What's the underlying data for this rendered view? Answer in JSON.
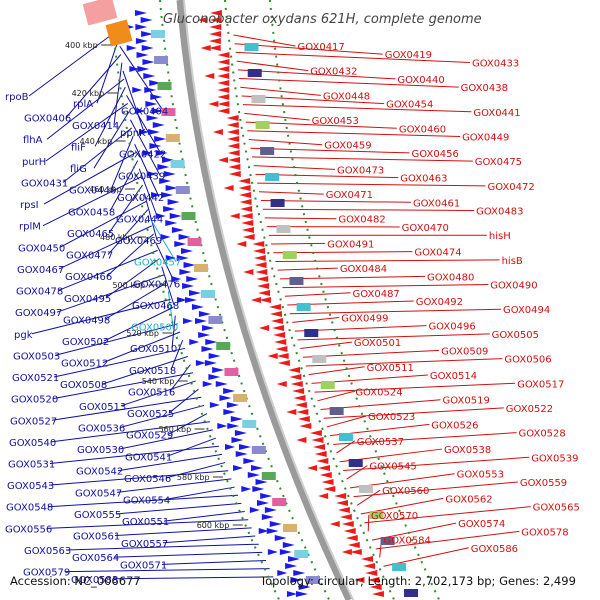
{
  "title": "Gluconobacter oxydans 621H, complete genome",
  "footer": {
    "accession": "Accession: NC_006677",
    "stats": "Topology: circular; Length: 2,702,173 bp; Genes: 2,499"
  },
  "kbp_ticks": [
    "400 kbp",
    "420 kbp",
    "440 kbp",
    "460 kbp",
    "480 kbp",
    "500 kbp",
    "520 kbp",
    "540 kbp",
    "560 kbp",
    "580 kbp",
    "600 kbp"
  ],
  "left_labels": [
    "rpoB",
    "rplA",
    "GOX0404",
    "GOX0406",
    "GOX0414",
    "ppnK",
    "flhA",
    "fliF",
    "GOX0422",
    "purH",
    "fliG",
    "GOX0439",
    "GOX0431",
    "GOX0446",
    "GOX0442",
    "rpsI",
    "GOX0458",
    "GOX0444",
    "rplM",
    "GOX0465",
    "GOX0469",
    "GOX0450",
    "GOX0477",
    "GOX0457",
    "GOX0467",
    "GOX0466",
    "GOX0476",
    "GOX0478",
    "GOX0495",
    "GOX0468",
    "GOX0497",
    "GOX0498",
    "GOX0500",
    "pgk",
    "GOX0502",
    "GOX0510",
    "GOX0503",
    "GOX0512",
    "GOX0518",
    "GOX0521",
    "GOX0508",
    "GOX0516",
    "GOX0520",
    "GOX0513",
    "GOX0525",
    "GOX0527",
    "GOX0536",
    "GOX0529",
    "GOX0540",
    "GOX0530",
    "GOX0541",
    "GOX0531",
    "GOX0542",
    "GOX0546",
    "GOX0543",
    "GOX0547",
    "GOX0554",
    "GOX0548",
    "GOX0555",
    "GOX0551",
    "GOX0556",
    "GOX0561",
    "GOX0557",
    "GOX0563",
    "GOX0564",
    "GOX0571",
    "GOX0579",
    "GOX0583"
  ],
  "right_labels": [
    "GOX0417",
    "GOX0419",
    "GOX0433",
    "GOX0432",
    "GOX0440",
    "GOX0438",
    "GOX0448",
    "GOX0454",
    "GOX0441",
    "GOX0453",
    "GOX0460",
    "GOX0449",
    "GOX0459",
    "GOX0456",
    "GOX0475",
    "GOX0473",
    "GOX0463",
    "GOX0472",
    "GOX0471",
    "GOX0461",
    "GOX0483",
    "GOX0482",
    "GOX0470",
    "hisH",
    "GOX0491",
    "GOX0474",
    "hisB",
    "GOX0484",
    "GOX0480",
    "GOX0490",
    "GOX0487",
    "GOX0492",
    "GOX0494",
    "GOX0499",
    "GOX0496",
    "GOX0505",
    "GOX0501",
    "GOX0509",
    "GOX0506",
    "GOX0511",
    "GOX0514",
    "GOX0517",
    "GOX0524",
    "GOX0519",
    "GOX0522",
    "GOX0523",
    "GOX0526",
    "GOX0528",
    "GOX0537",
    "GOX0538",
    "GOX0539",
    "GOX0545",
    "GOX0553",
    "GOX0559",
    "GOX0560",
    "GOX0562",
    "GOX0565",
    "GOX0570",
    "GOX0574",
    "GOX0578",
    "GOX0584",
    "GOX0586"
  ],
  "colors": {
    "left_label": "#1010a0",
    "right_label": "#d01010",
    "highlight_label": "#20b0c8",
    "backbone": "#9a9a9a",
    "forward_gene": "#1a1aee",
    "reverse_gene": "#ee1a1a"
  }
}
